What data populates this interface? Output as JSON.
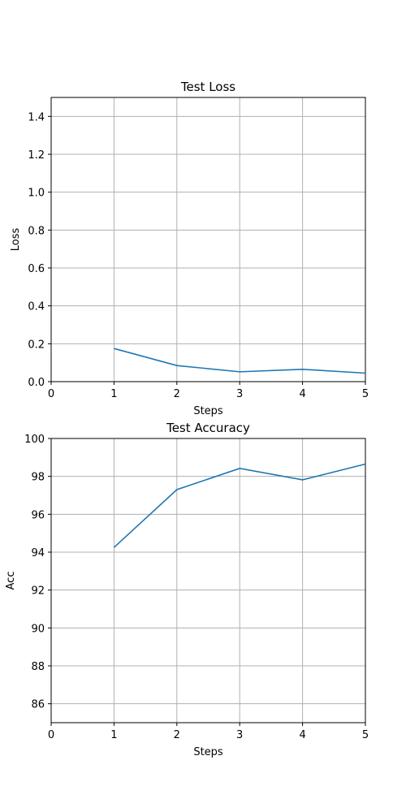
{
  "chart_data": [
    {
      "type": "line",
      "title": "Test Loss",
      "xlabel": "Steps",
      "ylabel": "Loss",
      "xlim": [
        0,
        5
      ],
      "ylim": [
        0,
        1.5
      ],
      "xticks": [
        0,
        1,
        2,
        3,
        4,
        5
      ],
      "yticks": [
        0.0,
        0.2,
        0.4,
        0.6,
        0.8,
        1.0,
        1.2,
        1.4
      ],
      "ytick_decimals": 1,
      "grid": true,
      "series": [
        {
          "x": [
            1,
            2,
            3,
            4,
            5
          ],
          "y": [
            0.175,
            0.085,
            0.052,
            0.065,
            0.045
          ],
          "color": "#1f77b4"
        }
      ]
    },
    {
      "type": "line",
      "title": "Test Accuracy",
      "xlabel": "Steps",
      "ylabel": "Acc",
      "xlim": [
        0,
        5
      ],
      "ylim": [
        85,
        100
      ],
      "xticks": [
        0,
        1,
        2,
        3,
        4,
        5
      ],
      "yticks": [
        86,
        88,
        90,
        92,
        94,
        96,
        98,
        100
      ],
      "ytick_decimals": 0,
      "grid": true,
      "series": [
        {
          "x": [
            1,
            2,
            3,
            4,
            5
          ],
          "y": [
            94.25,
            97.3,
            98.42,
            97.82,
            98.65
          ],
          "color": "#1f77b4"
        }
      ]
    }
  ]
}
